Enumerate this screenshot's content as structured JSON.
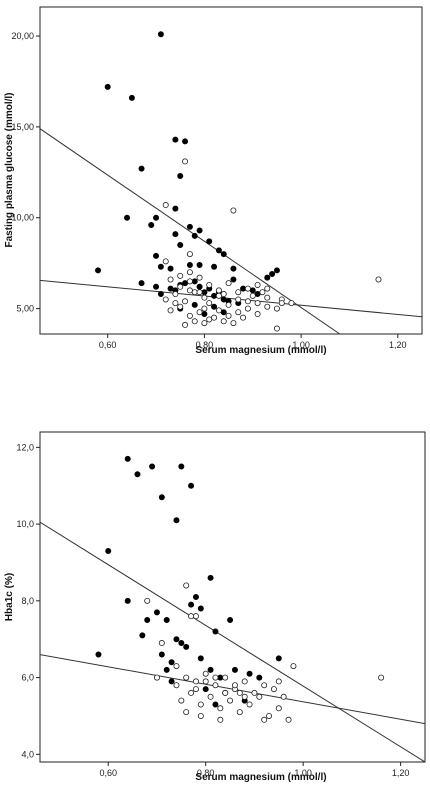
{
  "chart_data": [
    {
      "type": "scatter",
      "xlabel": "Serum magnesium (mmol/l)",
      "ylabel": "Fasting plasma glucose (mmol/l)",
      "xlim": [
        0.46,
        1.25
      ],
      "ylim": [
        3.6,
        21.6
      ],
      "x_ticks": [
        0.6,
        0.8,
        1.0,
        1.2
      ],
      "x_tick_labels": [
        "0,60",
        "0,80",
        "1,00",
        "1,20"
      ],
      "y_ticks": [
        5.0,
        10.0,
        15.0,
        20.0
      ],
      "y_tick_labels": [
        "5,00",
        "10,00",
        "15,00",
        "20,00"
      ],
      "grid": false,
      "regression_lines": [
        {
          "x": [
            0.46,
            1.08
          ],
          "y": [
            14.9,
            3.6
          ]
        },
        {
          "x": [
            0.46,
            1.25
          ],
          "y": [
            6.55,
            4.55
          ]
        }
      ],
      "series": [
        {
          "marker": "filled-circle",
          "points": [
            [
              0.71,
              20.1
            ],
            [
              0.6,
              17.2
            ],
            [
              0.65,
              16.6
            ],
            [
              0.74,
              14.3
            ],
            [
              0.76,
              14.2
            ],
            [
              0.67,
              12.7
            ],
            [
              0.75,
              12.3
            ],
            [
              0.74,
              10.5
            ],
            [
              0.64,
              10.0
            ],
            [
              0.7,
              10.0
            ],
            [
              0.69,
              9.6
            ],
            [
              0.77,
              9.5
            ],
            [
              0.79,
              9.3
            ],
            [
              0.74,
              9.1
            ],
            [
              0.78,
              9.0
            ],
            [
              0.81,
              8.7
            ],
            [
              0.75,
              8.5
            ],
            [
              0.83,
              8.2
            ],
            [
              0.84,
              8.0
            ],
            [
              0.7,
              7.9
            ],
            [
              0.58,
              7.1
            ],
            [
              0.71,
              7.3
            ],
            [
              0.73,
              7.2
            ],
            [
              0.77,
              7.4
            ],
            [
              0.79,
              7.4
            ],
            [
              0.82,
              7.3
            ],
            [
              0.86,
              7.2
            ],
            [
              0.95,
              7.1
            ],
            [
              0.94,
              6.9
            ],
            [
              0.67,
              6.4
            ],
            [
              0.7,
              6.2
            ],
            [
              0.71,
              5.8
            ],
            [
              0.73,
              6.1
            ],
            [
              0.74,
              6.0
            ],
            [
              0.75,
              6.3
            ],
            [
              0.76,
              6.4
            ],
            [
              0.78,
              6.5
            ],
            [
              0.79,
              6.2
            ],
            [
              0.8,
              5.9
            ],
            [
              0.81,
              6.1
            ],
            [
              0.82,
              5.7
            ],
            [
              0.83,
              5.9
            ],
            [
              0.84,
              5.5
            ],
            [
              0.85,
              5.4
            ],
            [
              0.87,
              5.3
            ],
            [
              0.86,
              6.6
            ],
            [
              0.88,
              6.1
            ],
            [
              0.9,
              6.0
            ],
            [
              0.93,
              6.7
            ],
            [
              0.75,
              5.0
            ],
            [
              0.78,
              5.2
            ],
            [
              0.8,
              4.7
            ],
            [
              0.82,
              5.1
            ],
            [
              0.84,
              4.8
            ],
            [
              0.91,
              5.8
            ]
          ]
        },
        {
          "marker": "open-circle",
          "points": [
            [
              0.72,
              10.7
            ],
            [
              0.86,
              10.4
            ],
            [
              0.76,
              13.1
            ],
            [
              0.77,
              6.0
            ],
            [
              0.72,
              5.5
            ],
            [
              0.74,
              5.8
            ],
            [
              0.76,
              5.4
            ],
            [
              0.78,
              5.9
            ],
            [
              0.8,
              5.6
            ],
            [
              0.81,
              5.3
            ],
            [
              0.83,
              5.7
            ],
            [
              0.85,
              5.2
            ],
            [
              0.87,
              5.5
            ],
            [
              0.89,
              5.4
            ],
            [
              0.91,
              5.3
            ],
            [
              0.93,
              5.1
            ],
            [
              0.95,
              5.0
            ],
            [
              0.96,
              5.5
            ],
            [
              0.98,
              5.3
            ],
            [
              0.73,
              4.9
            ],
            [
              0.75,
              5.1
            ],
            [
              0.77,
              4.6
            ],
            [
              0.79,
              4.8
            ],
            [
              0.81,
              4.4
            ],
            [
              0.83,
              4.9
            ],
            [
              0.85,
              4.6
            ],
            [
              0.87,
              4.8
            ],
            [
              0.89,
              5.0
            ],
            [
              0.91,
              4.7
            ],
            [
              0.93,
              5.6
            ],
            [
              0.95,
              3.9
            ],
            [
              0.75,
              6.2
            ],
            [
              0.77,
              6.5
            ],
            [
              0.79,
              5.9
            ],
            [
              0.81,
              6.3
            ],
            [
              0.83,
              6.0
            ],
            [
              0.85,
              6.4
            ],
            [
              0.87,
              5.9
            ],
            [
              0.89,
              6.1
            ],
            [
              0.91,
              6.3
            ],
            [
              0.93,
              6.1
            ],
            [
              0.76,
              4.1
            ],
            [
              0.78,
              4.3
            ],
            [
              0.8,
              4.2
            ],
            [
              0.82,
              4.5
            ],
            [
              0.84,
              4.3
            ],
            [
              0.86,
              4.2
            ],
            [
              0.88,
              4.5
            ],
            [
              0.73,
              6.6
            ],
            [
              0.75,
              6.8
            ],
            [
              0.77,
              7.0
            ],
            [
              0.79,
              6.7
            ],
            [
              1.16,
              6.6
            ],
            [
              0.72,
              7.6
            ],
            [
              0.77,
              8.0
            ],
            [
              0.74,
              5.3
            ],
            [
              0.8,
              5.0
            ],
            [
              0.84,
              5.8
            ],
            [
              0.9,
              5.7
            ],
            [
              0.92,
              5.9
            ],
            [
              0.96,
              5.3
            ]
          ]
        }
      ]
    },
    {
      "type": "scatter",
      "xlabel": "Serum magnesium (mmol/l)",
      "ylabel": "Hba1c (%)",
      "xlim": [
        0.46,
        1.25
      ],
      "ylim": [
        3.8,
        12.4
      ],
      "x_ticks": [
        0.6,
        0.8,
        1.0,
        1.2
      ],
      "x_tick_labels": [
        "0,60",
        "0,80",
        "1,00",
        "1,20"
      ],
      "y_ticks": [
        4.0,
        6.0,
        8.0,
        10.0,
        12.0
      ],
      "y_tick_labels": [
        "4,0",
        "6,0",
        "8,0",
        "10,0",
        "12,0"
      ],
      "grid": false,
      "regression_lines": [
        {
          "x": [
            0.46,
            1.25
          ],
          "y": [
            10.05,
            3.8
          ]
        },
        {
          "x": [
            0.46,
            1.25
          ],
          "y": [
            6.6,
            4.8
          ]
        }
      ],
      "series": [
        {
          "marker": "filled-circle",
          "points": [
            [
              0.64,
              11.7
            ],
            [
              0.69,
              11.5
            ],
            [
              0.75,
              11.5
            ],
            [
              0.66,
              11.3
            ],
            [
              0.77,
              11.0
            ],
            [
              0.71,
              10.7
            ],
            [
              0.74,
              10.1
            ],
            [
              0.6,
              9.3
            ],
            [
              0.81,
              8.6
            ],
            [
              0.78,
              8.1
            ],
            [
              0.64,
              8.0
            ],
            [
              0.77,
              7.9
            ],
            [
              0.79,
              7.8
            ],
            [
              0.7,
              7.7
            ],
            [
              0.68,
              7.5
            ],
            [
              0.72,
              7.5
            ],
            [
              0.85,
              7.5
            ],
            [
              0.82,
              7.2
            ],
            [
              0.74,
              7.0
            ],
            [
              0.71,
              6.6
            ],
            [
              0.73,
              6.4
            ],
            [
              0.58,
              6.6
            ],
            [
              0.95,
              6.5
            ],
            [
              0.67,
              7.1
            ],
            [
              0.75,
              6.9
            ],
            [
              0.76,
              6.8
            ],
            [
              0.79,
              6.5
            ],
            [
              0.81,
              6.2
            ],
            [
              0.83,
              6.0
            ],
            [
              0.8,
              5.7
            ],
            [
              0.86,
              6.2
            ],
            [
              0.89,
              6.1
            ],
            [
              0.91,
              6.0
            ],
            [
              0.72,
              6.2
            ],
            [
              0.73,
              5.9
            ],
            [
              0.84,
              5.6
            ],
            [
              0.88,
              5.4
            ],
            [
              0.82,
              5.3
            ]
          ]
        },
        {
          "marker": "open-circle",
          "points": [
            [
              0.68,
              8.0
            ],
            [
              0.76,
              8.4
            ],
            [
              0.77,
              7.6
            ],
            [
              0.78,
              7.6
            ],
            [
              0.71,
              6.9
            ],
            [
              0.74,
              6.3
            ],
            [
              0.76,
              6.0
            ],
            [
              0.78,
              5.9
            ],
            [
              0.8,
              6.1
            ],
            [
              0.82,
              5.8
            ],
            [
              0.84,
              6.0
            ],
            [
              0.86,
              5.7
            ],
            [
              0.88,
              5.9
            ],
            [
              0.9,
              5.6
            ],
            [
              0.92,
              5.8
            ],
            [
              0.94,
              5.7
            ],
            [
              0.96,
              5.5
            ],
            [
              0.98,
              6.3
            ],
            [
              0.75,
              5.4
            ],
            [
              0.77,
              5.6
            ],
            [
              0.79,
              5.3
            ],
            [
              0.81,
              5.5
            ],
            [
              0.83,
              5.2
            ],
            [
              0.85,
              5.4
            ],
            [
              0.87,
              5.6
            ],
            [
              0.89,
              5.3
            ],
            [
              0.91,
              5.5
            ],
            [
              0.93,
              5.0
            ],
            [
              0.95,
              5.2
            ],
            [
              0.97,
              4.9
            ],
            [
              0.76,
              5.1
            ],
            [
              0.78,
              5.7
            ],
            [
              0.8,
              5.9
            ],
            [
              0.82,
              6.0
            ],
            [
              0.84,
              5.6
            ],
            [
              0.86,
              5.8
            ],
            [
              0.88,
              5.5
            ],
            [
              0.74,
              5.8
            ],
            [
              0.7,
              6.0
            ],
            [
              1.16,
              6.0
            ],
            [
              0.79,
              5.0
            ],
            [
              0.83,
              4.9
            ],
            [
              0.87,
              5.1
            ],
            [
              0.92,
              4.9
            ],
            [
              0.95,
              5.9
            ]
          ]
        }
      ]
    }
  ]
}
